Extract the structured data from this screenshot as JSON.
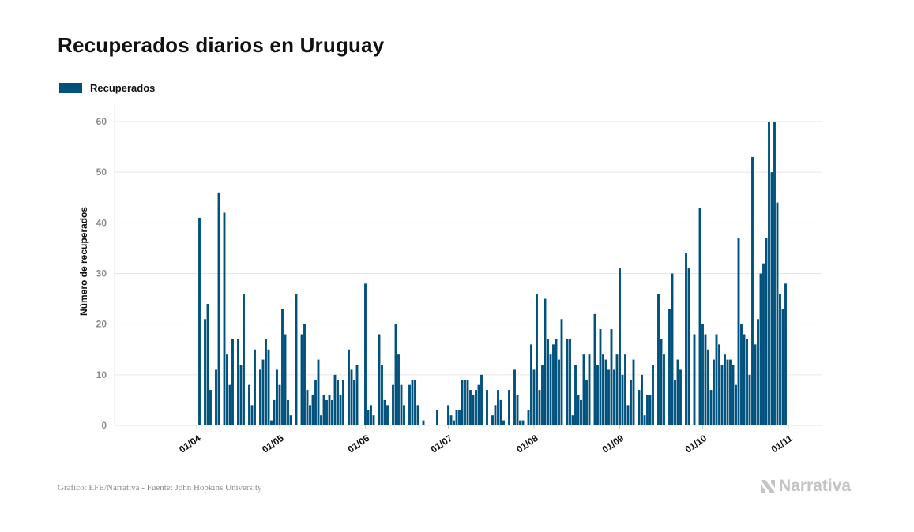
{
  "header": {
    "title": "Recuperados diarios en Uruguay"
  },
  "footer": {
    "source": "Gráfico: EFE/Narrativa - Fuente: John Hopkins University",
    "logo_text": "Narrativa"
  },
  "colors": {
    "bar": "#00527d",
    "grid": "#e6e6e6",
    "axis_tick": "#8a8a8a"
  },
  "chart_data": {
    "type": "bar",
    "title": "Recuperados diarios en Uruguay",
    "ylabel": "Número de recuperados",
    "xlabel": "",
    "ylim": [
      0,
      60
    ],
    "yticks": [
      0,
      10,
      20,
      30,
      40,
      50,
      60
    ],
    "grid": true,
    "legend_position": "top-left",
    "x_start": "2020-03-13",
    "xticks": [
      {
        "date": "2020-04-01",
        "label": "01/04"
      },
      {
        "date": "2020-05-01",
        "label": "01/05"
      },
      {
        "date": "2020-06-01",
        "label": "01/06"
      },
      {
        "date": "2020-07-01",
        "label": "01/07"
      },
      {
        "date": "2020-08-01",
        "label": "01/08"
      },
      {
        "date": "2020-09-01",
        "label": "01/09"
      },
      {
        "date": "2020-10-01",
        "label": "01/10"
      },
      {
        "date": "2020-11-01",
        "label": "01/11"
      }
    ],
    "series": [
      {
        "name": "Recuperados",
        "values": [
          0,
          0,
          0,
          0,
          0,
          0,
          0,
          0,
          0,
          0,
          0,
          0,
          0,
          0,
          0,
          0,
          0,
          0,
          0,
          0,
          41,
          0,
          21,
          24,
          7,
          0,
          11,
          46,
          0,
          42,
          14,
          8,
          17,
          0,
          17,
          12,
          26,
          0,
          8,
          4,
          15,
          0,
          11,
          13,
          17,
          15,
          1,
          5,
          11,
          8,
          23,
          18,
          5,
          2,
          0,
          26,
          0,
          18,
          20,
          7,
          4,
          6,
          9,
          13,
          2,
          6,
          5,
          6,
          5,
          10,
          9,
          6,
          9,
          0,
          15,
          11,
          9,
          12,
          0,
          0,
          28,
          3,
          4,
          2,
          0,
          18,
          12,
          5,
          4,
          0,
          8,
          20,
          14,
          8,
          4,
          0,
          8,
          9,
          9,
          4,
          0,
          1,
          0,
          0,
          0,
          0,
          3,
          0,
          0,
          0,
          4,
          2,
          1,
          3,
          3,
          9,
          9,
          9,
          7,
          6,
          7,
          8,
          10,
          0,
          7,
          0,
          2,
          4,
          7,
          5,
          1,
          0,
          7,
          0,
          11,
          6,
          1,
          1,
          0,
          3,
          16,
          11,
          26,
          7,
          12,
          25,
          17,
          14,
          16,
          17,
          13,
          21,
          0,
          17,
          17,
          2,
          12,
          6,
          5,
          14,
          9,
          14,
          0,
          22,
          12,
          19,
          14,
          13,
          11,
          19,
          11,
          14,
          31,
          10,
          14,
          4,
          9,
          13,
          0,
          7,
          10,
          2,
          6,
          6,
          12,
          0,
          26,
          17,
          14,
          0,
          23,
          30,
          9,
          13,
          11,
          0,
          34,
          31,
          0,
          18,
          0,
          43,
          20,
          18,
          15,
          7,
          13,
          18,
          16,
          12,
          14,
          13,
          13,
          12,
          8,
          37,
          20,
          18,
          17,
          10,
          53,
          16,
          21,
          30,
          32,
          37,
          60,
          50,
          60,
          44,
          26,
          23,
          28
        ]
      }
    ]
  }
}
